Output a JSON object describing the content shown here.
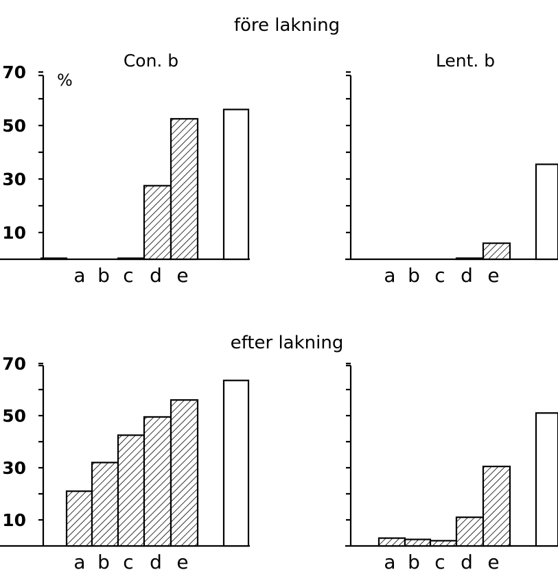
{
  "headings": {
    "top": "före lakning",
    "bottom": "efter lakning"
  },
  "colors": {
    "ink": "#000000",
    "paper": "#ffffff"
  },
  "chart_data": [
    {
      "type": "bar",
      "panel": "före lakning",
      "title": "Con. b",
      "ylabel": "%",
      "ylim": [
        0,
        70
      ],
      "yticks": [
        10,
        30,
        50,
        70
      ],
      "categories": [
        "a",
        "b",
        "c",
        "d",
        "e",
        ""
      ],
      "values": [
        0.3,
        0,
        0.3,
        27.5,
        52.5,
        56
      ],
      "fill": [
        "hatched",
        "hatched",
        "hatched",
        "hatched",
        "hatched",
        "open"
      ]
    },
    {
      "type": "bar",
      "panel": "före lakning",
      "title": "Lent. b",
      "ylim": [
        0,
        70
      ],
      "categories": [
        "a",
        "b",
        "c",
        "d",
        "e",
        ""
      ],
      "values": [
        0,
        0,
        0,
        0.4,
        6,
        35.5
      ],
      "fill": [
        "hatched",
        "hatched",
        "hatched",
        "hatched",
        "hatched",
        "open"
      ]
    },
    {
      "type": "bar",
      "panel": "efter lakning",
      "title": "",
      "ylim": [
        0,
        70
      ],
      "yticks": [
        10,
        30,
        50,
        70
      ],
      "categories": [
        "a",
        "b",
        "c",
        "d",
        "e",
        ""
      ],
      "values": [
        21,
        32,
        42.5,
        49.5,
        56,
        63.5
      ],
      "fill": [
        "hatched",
        "hatched",
        "hatched",
        "hatched",
        "hatched",
        "open"
      ]
    },
    {
      "type": "bar",
      "panel": "efter lakning",
      "title": "",
      "ylim": [
        0,
        70
      ],
      "categories": [
        "a",
        "b",
        "c",
        "d",
        "e",
        ""
      ],
      "values": [
        3,
        2.5,
        2,
        11,
        30.5,
        51
      ],
      "fill": [
        "hatched",
        "hatched",
        "hatched",
        "hatched",
        "hatched",
        "open"
      ]
    }
  ]
}
